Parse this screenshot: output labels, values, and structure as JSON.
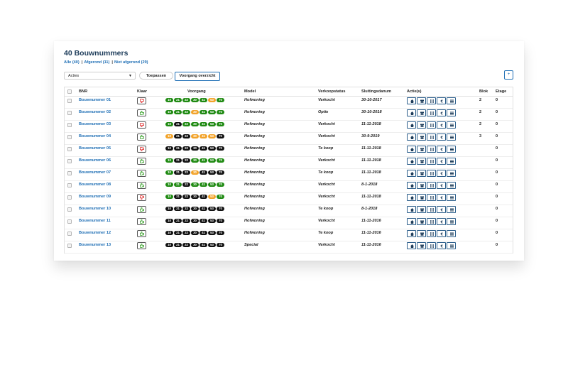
{
  "header": {
    "title": "40 Bouwnummers"
  },
  "filters": [
    {
      "label": "Alle (40)"
    },
    {
      "label": "Afgerond (11)"
    },
    {
      "label": "Niet afgerond (29)"
    }
  ],
  "toolbar": {
    "actions_select": "Acties",
    "apply_label": "Toepassen",
    "overview_label": "Voorgang overzicht",
    "add_icon": "plus-icon"
  },
  "columns": {
    "bnr": "BNR",
    "klaar": "Klaar",
    "voorgang": "Voorgang",
    "model": "Model",
    "status": "Verkoopstatus",
    "date": "Sluitingsdanum",
    "actions": "Actie(s)",
    "blok": "Blok",
    "etage": "Etage"
  },
  "stage_codes": [
    "10",
    "21",
    "22",
    "30",
    "41",
    "53",
    "70"
  ],
  "stage_colors": {
    "black": "#111111",
    "green": "#1f8a12",
    "orange": "#f2a32a"
  },
  "rows": [
    {
      "bnr": "Bouwnummer 01",
      "klaar": "red",
      "stages": [
        "green",
        "green",
        "green",
        "green",
        "green",
        "orange",
        "green"
      ],
      "model": "Hofwoning",
      "status": "Verkocht",
      "date": "30-10-2017",
      "blok": "2",
      "etage": "0"
    },
    {
      "bnr": "Bouwnummer 02",
      "klaar": "green",
      "stages": [
        "green",
        "green",
        "green",
        "orange",
        "green",
        "green",
        "green"
      ],
      "model": "Hofwoning",
      "status": "Optie",
      "date": "30-10-2018",
      "blok": "2",
      "etage": "0"
    },
    {
      "bnr": "Bouwnummer 03",
      "klaar": "red",
      "stages": [
        "green",
        "black",
        "green",
        "green",
        "green",
        "green",
        "green"
      ],
      "model": "Hofwoning",
      "status": "Verkocht",
      "date": "11-11-2018",
      "blok": "2",
      "etage": "0"
    },
    {
      "bnr": "Bouwnummer 04",
      "klaar": "green",
      "stages": [
        "orange",
        "black",
        "black",
        "orange",
        "orange",
        "orange",
        "black"
      ],
      "model": "Hofwoning",
      "status": "Verkocht",
      "date": "30-9-2019",
      "blok": "3",
      "etage": "0"
    },
    {
      "bnr": "Bouwnummer 05",
      "klaar": "red",
      "stages": [
        "black",
        "black",
        "black",
        "black",
        "black",
        "black",
        "black"
      ],
      "model": "Hofwoning",
      "status": "Te koop",
      "date": "11-11-2018",
      "blok": "",
      "etage": "0"
    },
    {
      "bnr": "Bouwnummer 06",
      "klaar": "green",
      "stages": [
        "green",
        "black",
        "black",
        "green",
        "green",
        "green",
        "green"
      ],
      "model": "Hofwoning",
      "status": "Verkocht",
      "date": "11-11-2018",
      "blok": "",
      "etage": "0"
    },
    {
      "bnr": "Bouwnummer 07",
      "klaar": "green",
      "stages": [
        "green",
        "black",
        "black",
        "orange",
        "black",
        "black",
        "black"
      ],
      "model": "Hofwoning",
      "status": "Te koop",
      "date": "11-11-2018",
      "blok": "",
      "etage": "0"
    },
    {
      "bnr": "Bouwnummer 08",
      "klaar": "green",
      "stages": [
        "green",
        "green",
        "black",
        "green",
        "green",
        "green",
        "green"
      ],
      "model": "Hofwoning",
      "status": "Verkocht",
      "date": "8-1-2018",
      "blok": "",
      "etage": "0"
    },
    {
      "bnr": "Bouwnummer 09",
      "klaar": "red",
      "stages": [
        "green",
        "black",
        "black",
        "black",
        "black",
        "orange",
        "green"
      ],
      "model": "Hofwoning",
      "status": "Verkocht",
      "date": "11-11-2018",
      "blok": "",
      "etage": "0"
    },
    {
      "bnr": "Bouwnummer 10",
      "klaar": "green",
      "stages": [
        "black",
        "black",
        "black",
        "black",
        "black",
        "black",
        "black"
      ],
      "model": "Hofwoning",
      "status": "Te koop",
      "date": "8-1-2018",
      "blok": "",
      "etage": "0"
    },
    {
      "bnr": "Bouwnummer 11",
      "klaar": "green",
      "stages": [
        "black",
        "black",
        "black",
        "black",
        "black",
        "black",
        "black"
      ],
      "model": "Hofwoning",
      "status": "Verkocht",
      "date": "11-11-2016",
      "blok": "",
      "etage": "0"
    },
    {
      "bnr": "Bouwnummer 12",
      "klaar": "green",
      "stages": [
        "black",
        "black",
        "black",
        "black",
        "black",
        "black",
        "black"
      ],
      "model": "Hofwoning",
      "status": "Te koop",
      "date": "11-11-2016",
      "blok": "",
      "etage": "0"
    },
    {
      "bnr": "Bouwnummer 13",
      "klaar": "green",
      "stages": [
        "black",
        "black",
        "black",
        "black",
        "black",
        "black",
        "black"
      ],
      "model": "Special",
      "status": "Verkocht",
      "date": "11-11-2016",
      "blok": "",
      "etage": "0"
    }
  ],
  "action_icons": [
    "home-icon",
    "archive-icon",
    "document-icon",
    "euro-icon",
    "list-icon"
  ]
}
